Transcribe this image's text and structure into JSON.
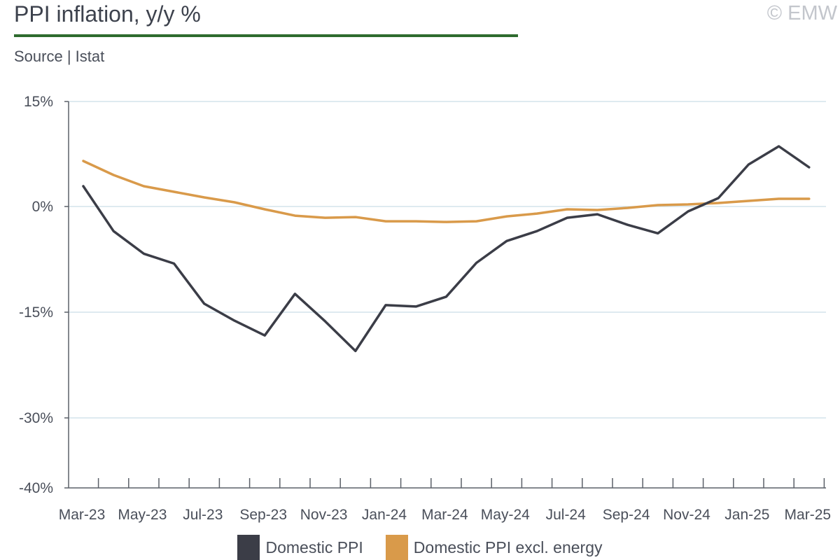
{
  "header": {
    "title": "PPI inflation, y/y %",
    "copyright": "© EMW",
    "source": "Source | Istat",
    "accent_color": "#2e6b2e"
  },
  "chart_data": {
    "type": "line",
    "x": [
      "Mar-23",
      "Apr-23",
      "May-23",
      "Jun-23",
      "Jul-23",
      "Aug-23",
      "Sep-23",
      "Oct-23",
      "Nov-23",
      "Dec-23",
      "Jan-24",
      "Feb-24",
      "Mar-24",
      "Apr-24",
      "May-24",
      "Jun-24",
      "Jul-24",
      "Aug-24",
      "Sep-24",
      "Oct-24",
      "Nov-24",
      "Dec-24",
      "Jan-25",
      "Feb-25",
      "Mar-25"
    ],
    "x_tick_labels": [
      "Mar-23",
      "May-23",
      "Jul-23",
      "Sep-23",
      "Nov-23",
      "Jan-24",
      "Mar-24",
      "May-24",
      "Jul-24",
      "Sep-24",
      "Nov-24",
      "Jan-25",
      "Mar-25"
    ],
    "y_ticks": [
      15,
      0,
      -15,
      -30,
      -40
    ],
    "y_tick_labels": [
      "15%",
      "0%",
      "-15%",
      "-30%",
      "-40%"
    ],
    "ylim": [
      -40,
      15
    ],
    "grid": true,
    "legend_position": "bottom",
    "series": [
      {
        "name": "Domestic PPI",
        "color": "#3b3d47",
        "values": [
          2.9,
          -3.5,
          -6.7,
          -8.1,
          -13.8,
          -16.2,
          -18.3,
          -12.4,
          -16.3,
          -20.5,
          -14.0,
          -14.2,
          -12.8,
          -8.0,
          -4.9,
          -3.5,
          -1.6,
          -1.1,
          -2.6,
          -3.8,
          -0.7,
          1.2,
          6.0,
          8.6,
          5.6
        ]
      },
      {
        "name": "Domestic PPI excl. energy",
        "color": "#d99a4a",
        "values": [
          6.5,
          4.5,
          2.9,
          2.1,
          1.3,
          0.6,
          -0.4,
          -1.3,
          -1.6,
          -1.5,
          -2.1,
          -2.1,
          -2.2,
          -2.1,
          -1.4,
          -1.0,
          -0.4,
          -0.5,
          -0.2,
          0.2,
          0.3,
          0.5,
          0.8,
          1.1,
          1.1
        ]
      }
    ]
  }
}
